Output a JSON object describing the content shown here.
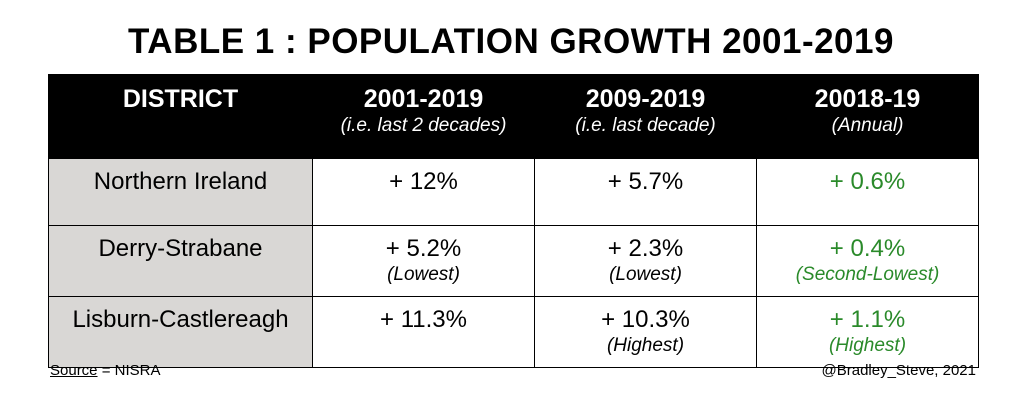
{
  "title": "TABLE 1 : POPULATION GROWTH 2001-2019",
  "headers": [
    {
      "main": "DISTRICT",
      "sub": ""
    },
    {
      "main": "2001-2019",
      "sub": "(i.e. last 2 decades)"
    },
    {
      "main": "2009-2019",
      "sub": "(i.e. last decade)"
    },
    {
      "main": "20018-19",
      "sub": "(Annual)"
    }
  ],
  "rows": [
    {
      "district": "Northern Ireland",
      "cells": [
        {
          "value": "+ 12%",
          "note": ""
        },
        {
          "value": "+ 5.7%",
          "note": ""
        },
        {
          "value": "+ 0.6%",
          "note": ""
        }
      ]
    },
    {
      "district": "Derry-Strabane",
      "cells": [
        {
          "value": "+ 5.2%",
          "note": "(Lowest)"
        },
        {
          "value": "+ 2.3%",
          "note": "(Lowest)"
        },
        {
          "value": "+ 0.4%",
          "note": "(Second-Lowest)"
        }
      ]
    },
    {
      "district": "Lisburn-Castlereagh",
      "cells": [
        {
          "value": "+ 11.3%",
          "note": ""
        },
        {
          "value": "+ 10.3%",
          "note": "(Highest)"
        },
        {
          "value": "+ 1.1%",
          "note": "(Highest)"
        }
      ]
    }
  ],
  "footer": {
    "source_label": "Source",
    "source_value": " = NISRA",
    "credit": "@Bradley_Steve, 2021"
  },
  "colors": {
    "header_bg": "#000000",
    "district_bg": "#d9d7d5",
    "annual_text": "#2a8a2a"
  }
}
